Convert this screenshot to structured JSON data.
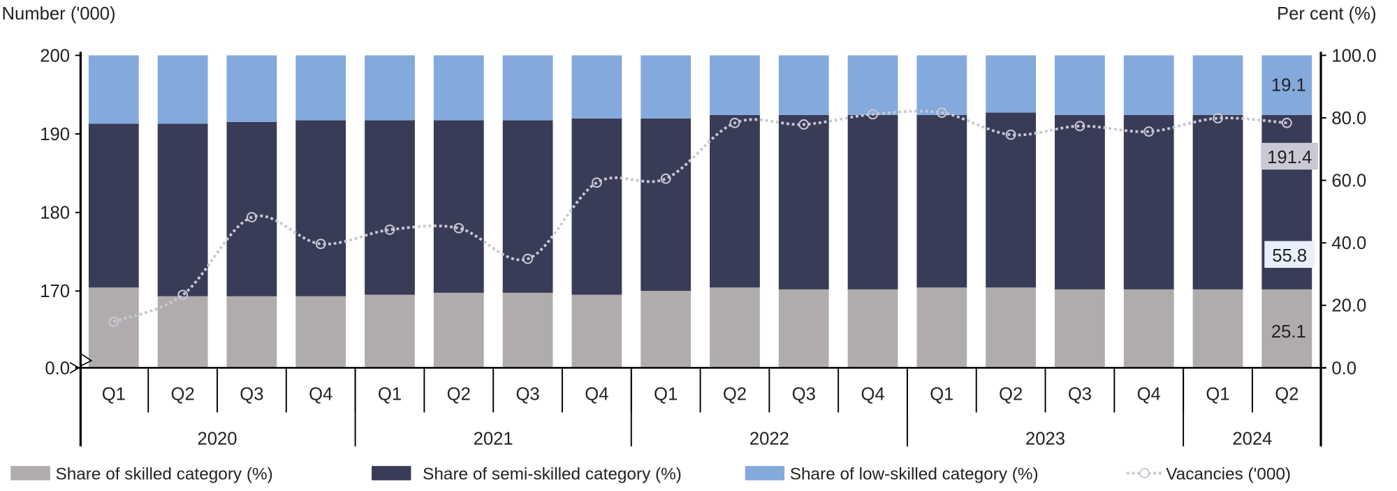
{
  "chart_data": {
    "type": "bar",
    "stacked": true,
    "left_axis_title": "Number ('000)",
    "right_axis_title": "Per cent (%)",
    "left_ticks": [
      "0.0",
      "170",
      "180",
      "190",
      "200"
    ],
    "left_axis_break": true,
    "ylim_left": [
      165,
      200
    ],
    "right_ticks": [
      "0.0",
      "20.0",
      "40.0",
      "60.0",
      "80.0",
      "100.0"
    ],
    "ylim_right": [
      0,
      100
    ],
    "categories": [
      "Q1",
      "Q2",
      "Q3",
      "Q4",
      "Q1",
      "Q2",
      "Q3",
      "Q4",
      "Q1",
      "Q2",
      "Q3",
      "Q4",
      "Q1",
      "Q2",
      "Q3",
      "Q4",
      "Q1",
      "Q2"
    ],
    "years": [
      {
        "label": "2020",
        "count": 4
      },
      {
        "label": "2021",
        "count": 4
      },
      {
        "label": "2022",
        "count": 4
      },
      {
        "label": "2023",
        "count": 4
      },
      {
        "label": "2024",
        "count": 2
      }
    ],
    "series": [
      {
        "name": "Share of skilled category (%)",
        "kind": "bar",
        "axis": "right",
        "color": "#b0acad",
        "values": [
          25.7,
          22.9,
          22.9,
          22.9,
          23.4,
          24.0,
          24.0,
          23.4,
          24.6,
          25.7,
          25.1,
          25.1,
          25.7,
          25.7,
          25.1,
          25.1,
          25.1,
          25.1
        ]
      },
      {
        "name": "Share of semi-skilled category (%)",
        "kind": "bar",
        "axis": "right",
        "color": "#383c57",
        "values": [
          52.4,
          55.2,
          55.8,
          56.3,
          55.8,
          55.2,
          55.2,
          56.4,
          55.2,
          55.2,
          55.8,
          55.8,
          55.2,
          56.0,
          55.8,
          55.8,
          55.8,
          55.8
        ]
      },
      {
        "name": "Share of low-skilled category (%)",
        "kind": "bar",
        "axis": "right",
        "color": "#84a9dd",
        "values": [
          21.9,
          21.9,
          21.3,
          20.8,
          20.8,
          20.8,
          20.8,
          20.2,
          20.2,
          19.1,
          19.1,
          19.1,
          19.1,
          18.3,
          19.1,
          19.1,
          19.1,
          19.1
        ]
      },
      {
        "name": "Vacancies ('000)",
        "kind": "line",
        "axis": "left",
        "color": "#c8c8d4",
        "values": [
          166.1,
          169.5,
          179.4,
          176.0,
          177.8,
          178.0,
          174.1,
          183.8,
          184.3,
          191.4,
          191.2,
          192.5,
          192.7,
          189.9,
          191.0,
          190.3,
          192.0,
          191.4
        ]
      }
    ],
    "data_labels": {
      "skilled": "25.1",
      "semi": "55.8",
      "low": "19.1",
      "vacancies": "191.4"
    },
    "legend_position": "bottom",
    "grid": false
  }
}
